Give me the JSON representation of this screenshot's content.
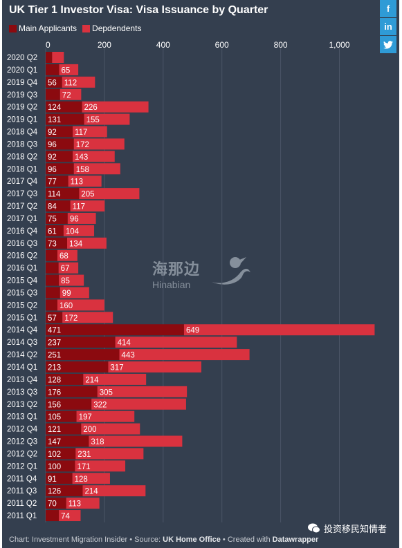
{
  "colors": {
    "background": "#343f4f",
    "main": "#8b0a0f",
    "dependents": "#d9323f",
    "grid": "#4b5566"
  },
  "share": [
    {
      "icon": "facebook-icon",
      "glyph": "f"
    },
    {
      "icon": "linkedin-icon",
      "glyph": "in"
    },
    {
      "icon": "twitter-icon",
      "glyph": "t"
    }
  ],
  "footer": {
    "prefix": "Chart: Investment Migration Insider • Source: ",
    "source": "UK Home Office",
    "middle": " • Created with ",
    "tool": "Datawrapper"
  },
  "watermark": {
    "cn": "海那边",
    "en": "Hinabian"
  },
  "wechat": {
    "label": "投资移民知情者"
  },
  "chart_data": {
    "type": "bar",
    "orientation": "horizontal",
    "stacked": true,
    "title": "UK Tier 1 Investor Visa: Visa Issuance by Quarter",
    "legend": "top-left",
    "grid": true,
    "xlim": [
      0,
      1120
    ],
    "ticks": [
      0,
      200,
      400,
      600,
      800,
      1000
    ],
    "tick_labels": [
      "0",
      "200",
      "400",
      "600",
      "800",
      "1,000"
    ],
    "categories": [
      "2020 Q2",
      "2020 Q1",
      "2019 Q4",
      "2019 Q3",
      "2019 Q2",
      "2019 Q1",
      "2018 Q4",
      "2018 Q3",
      "2018 Q2",
      "2018 Q1",
      "2017 Q4",
      "2017 Q3",
      "2017 Q2",
      "2017 Q1",
      "2016 Q4",
      "2016 Q3",
      "2016 Q2",
      "2016 Q1",
      "2015 Q4",
      "2015 Q3",
      "2015 Q2",
      "2015 Q1",
      "2014 Q4",
      "2014 Q3",
      "2014 Q2",
      "2014 Q1",
      "2013 Q4",
      "2013 Q3",
      "2013 Q2",
      "2013 Q1",
      "2012 Q4",
      "2012 Q3",
      "2012 Q2",
      "2012 Q1",
      "2011 Q4",
      "2011 Q3",
      "2011 Q2",
      "2011 Q1"
    ],
    "series": [
      {
        "name": "Main Applicants",
        "values": [
          22,
          46,
          56,
          49,
          124,
          131,
          92,
          96,
          92,
          96,
          77,
          114,
          84,
          75,
          61,
          73,
          40,
          44,
          45,
          49,
          40,
          57,
          471,
          237,
          251,
          213,
          128,
          176,
          156,
          105,
          121,
          147,
          102,
          100,
          91,
          126,
          70,
          45
        ],
        "labels": [
          "",
          "",
          "56",
          "",
          "124",
          "131",
          "92",
          "96",
          "92",
          "96",
          "77",
          "114",
          "84",
          "75",
          "61",
          "73",
          "",
          "",
          "",
          "",
          "",
          "57",
          "471",
          "237",
          "251",
          "213",
          "128",
          "176",
          "156",
          "105",
          "121",
          "147",
          "102",
          "100",
          "91",
          "126",
          "70",
          ""
        ]
      },
      {
        "name": "Depdendents",
        "values": [
          40,
          65,
          112,
          72,
          226,
          155,
          117,
          172,
          143,
          158,
          113,
          205,
          117,
          96,
          104,
          134,
          68,
          67,
          85,
          99,
          160,
          172,
          649,
          414,
          443,
          317,
          214,
          305,
          322,
          197,
          200,
          318,
          231,
          171,
          128,
          214,
          113,
          74
        ],
        "labels": [
          "",
          "65",
          "112",
          "72",
          "226",
          "155",
          "117",
          "172",
          "143",
          "158",
          "113",
          "205",
          "117",
          "96",
          "104",
          "134",
          "68",
          "67",
          "85",
          "99",
          "160",
          "172",
          "649",
          "414",
          "443",
          "317",
          "214",
          "305",
          "322",
          "197",
          "200",
          "318",
          "231",
          "171",
          "128",
          "214",
          "113",
          "74"
        ]
      }
    ]
  }
}
